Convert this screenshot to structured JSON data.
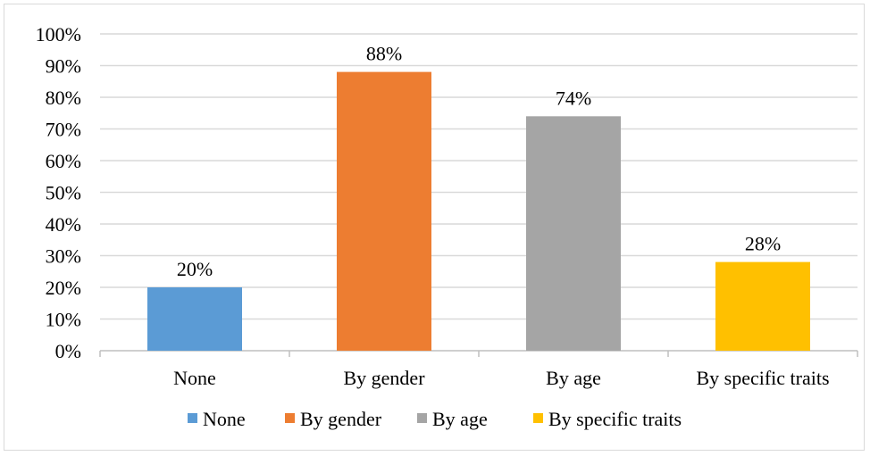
{
  "chart_data": {
    "type": "bar",
    "title": "",
    "xlabel": "",
    "ylabel": "",
    "categories": [
      "None",
      "By gender",
      "By age",
      "By specific traits"
    ],
    "values": [
      20,
      88,
      74,
      28
    ],
    "data_labels": [
      "20%",
      "88%",
      "74%",
      "28%"
    ],
    "colors": [
      "#5b9bd5",
      "#ed7d31",
      "#a5a5a5",
      "#ffc000"
    ],
    "ylim": [
      0,
      100
    ],
    "yticks": [
      0,
      10,
      20,
      30,
      40,
      50,
      60,
      70,
      80,
      90,
      100
    ],
    "ytick_labels": [
      "0%",
      "10%",
      "20%",
      "30%",
      "40%",
      "50%",
      "60%",
      "70%",
      "80%",
      "90%",
      "100%"
    ],
    "grid": true,
    "legend": {
      "placement": "bottom",
      "entries": [
        "None",
        "By gender",
        "By age",
        "By specific traits"
      ]
    }
  }
}
